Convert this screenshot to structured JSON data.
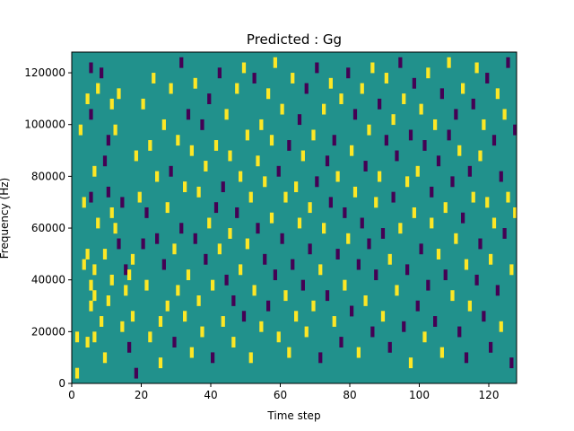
{
  "chart_data": {
    "type": "heatmap",
    "title": "Predicted : Gg",
    "xlabel": "Time step",
    "ylabel": "Frequency (Hz)",
    "xlim": [
      0,
      128
    ],
    "ylim": [
      0,
      128000
    ],
    "xticks": [
      0,
      20,
      40,
      60,
      80,
      100,
      120
    ],
    "yticks": [
      0,
      20000,
      40000,
      60000,
      80000,
      100000,
      120000
    ],
    "ytick_labels": [
      "0",
      "20000",
      "40000",
      "60000",
      "80000",
      "100000",
      "120000"
    ],
    "grid": false,
    "n_time_steps": 128,
    "n_frequency_bins": 64,
    "levels": [
      -1,
      0,
      1
    ],
    "colors": {
      "low": "#440154",
      "mid": "#21918c",
      "high": "#fde725"
    },
    "background_level": 0,
    "cells": [
      [
        1,
        2,
        1
      ],
      [
        1,
        9,
        1
      ],
      [
        2,
        49,
        1
      ],
      [
        3,
        35,
        1
      ],
      [
        3,
        23,
        1
      ],
      [
        4,
        55,
        1
      ],
      [
        4,
        25,
        1
      ],
      [
        4,
        8,
        1
      ],
      [
        5,
        61,
        -1
      ],
      [
        5,
        52,
        -1
      ],
      [
        5,
        36,
        -1
      ],
      [
        5,
        19,
        1
      ],
      [
        5,
        15,
        1
      ],
      [
        6,
        41,
        1
      ],
      [
        6,
        22,
        1
      ],
      [
        6,
        17,
        1
      ],
      [
        6,
        9,
        1
      ],
      [
        7,
        57,
        1
      ],
      [
        7,
        31,
        1
      ],
      [
        8,
        12,
        1
      ],
      [
        8,
        60,
        -1
      ],
      [
        9,
        43,
        -1
      ],
      [
        9,
        25,
        1
      ],
      [
        9,
        5,
        1
      ],
      [
        10,
        16,
        1
      ],
      [
        10,
        37,
        -1
      ],
      [
        10,
        47,
        -1
      ],
      [
        11,
        54,
        1
      ],
      [
        11,
        33,
        1
      ],
      [
        11,
        20,
        1
      ],
      [
        12,
        49,
        1
      ],
      [
        12,
        30,
        1
      ],
      [
        13,
        56,
        1
      ],
      [
        13,
        27,
        -1
      ],
      [
        14,
        11,
        1
      ],
      [
        14,
        35,
        -1
      ],
      [
        15,
        18,
        1
      ],
      [
        15,
        22,
        -1
      ],
      [
        16,
        21,
        1
      ],
      [
        16,
        7,
        -1
      ],
      [
        17,
        24,
        1
      ],
      [
        17,
        13,
        1
      ],
      [
        18,
        2,
        -1
      ],
      [
        18,
        44,
        1
      ],
      [
        19,
        36,
        1
      ],
      [
        20,
        54,
        1
      ],
      [
        20,
        27,
        -1
      ],
      [
        21,
        19,
        1
      ],
      [
        21,
        33,
        -1
      ],
      [
        22,
        46,
        1
      ],
      [
        22,
        9,
        1
      ],
      [
        23,
        59,
        1
      ],
      [
        24,
        40,
        1
      ],
      [
        24,
        28,
        -1
      ],
      [
        25,
        12,
        1
      ],
      [
        25,
        4,
        1
      ],
      [
        26,
        50,
        1
      ],
      [
        26,
        23,
        -1
      ],
      [
        27,
        34,
        1
      ],
      [
        27,
        15,
        1
      ],
      [
        28,
        57,
        1
      ],
      [
        28,
        41,
        -1
      ],
      [
        29,
        26,
        1
      ],
      [
        29,
        8,
        -1
      ],
      [
        30,
        47,
        1
      ],
      [
        30,
        18,
        1
      ],
      [
        31,
        62,
        -1
      ],
      [
        31,
        30,
        -1
      ],
      [
        32,
        13,
        1
      ],
      [
        32,
        38,
        1
      ],
      [
        33,
        52,
        -1
      ],
      [
        33,
        21,
        1
      ],
      [
        34,
        45,
        1
      ],
      [
        34,
        6,
        1
      ],
      [
        35,
        58,
        1
      ],
      [
        35,
        28,
        -1
      ],
      [
        36,
        16,
        1
      ],
      [
        36,
        37,
        1
      ],
      [
        37,
        50,
        -1
      ],
      [
        37,
        10,
        1
      ],
      [
        38,
        42,
        1
      ],
      [
        38,
        24,
        -1
      ],
      [
        39,
        55,
        -1
      ],
      [
        39,
        31,
        1
      ],
      [
        40,
        19,
        1
      ],
      [
        40,
        5,
        -1
      ],
      [
        41,
        46,
        1
      ],
      [
        41,
        34,
        -1
      ],
      [
        42,
        60,
        -1
      ],
      [
        42,
        26,
        1
      ],
      [
        43,
        12,
        1
      ],
      [
        43,
        38,
        -1
      ],
      [
        44,
        52,
        1
      ],
      [
        44,
        20,
        -1
      ],
      [
        45,
        44,
        1
      ],
      [
        45,
        29,
        1
      ],
      [
        46,
        16,
        -1
      ],
      [
        46,
        8,
        1
      ],
      [
        47,
        57,
        1
      ],
      [
        47,
        33,
        -1
      ],
      [
        48,
        40,
        1
      ],
      [
        48,
        22,
        1
      ],
      [
        49,
        61,
        1
      ],
      [
        49,
        13,
        -1
      ],
      [
        50,
        48,
        1
      ],
      [
        50,
        27,
        1
      ],
      [
        51,
        36,
        1
      ],
      [
        51,
        5,
        1
      ],
      [
        52,
        59,
        -1
      ],
      [
        52,
        18,
        1
      ],
      [
        53,
        43,
        1
      ],
      [
        53,
        30,
        -1
      ],
      [
        54,
        11,
        1
      ],
      [
        54,
        50,
        1
      ],
      [
        55,
        24,
        -1
      ],
      [
        55,
        39,
        1
      ],
      [
        56,
        56,
        1
      ],
      [
        56,
        15,
        -1
      ],
      [
        57,
        47,
        1
      ],
      [
        57,
        32,
        1
      ],
      [
        58,
        62,
        1
      ],
      [
        58,
        21,
        -1
      ],
      [
        59,
        41,
        -1
      ],
      [
        59,
        9,
        1
      ],
      [
        60,
        53,
        1
      ],
      [
        60,
        28,
        -1
      ],
      [
        61,
        17,
        1
      ],
      [
        61,
        36,
        1
      ],
      [
        62,
        46,
        -1
      ],
      [
        62,
        6,
        1
      ],
      [
        63,
        59,
        1
      ],
      [
        63,
        23,
        -1
      ],
      [
        64,
        38,
        1
      ],
      [
        64,
        13,
        1
      ],
      [
        65,
        51,
        -1
      ],
      [
        65,
        31,
        1
      ],
      [
        66,
        44,
        1
      ],
      [
        66,
        19,
        -1
      ],
      [
        67,
        57,
        -1
      ],
      [
        67,
        10,
        1
      ],
      [
        68,
        34,
        1
      ],
      [
        68,
        26,
        -1
      ],
      [
        69,
        48,
        1
      ],
      [
        69,
        15,
        1
      ],
      [
        70,
        61,
        -1
      ],
      [
        70,
        39,
        -1
      ],
      [
        71,
        22,
        1
      ],
      [
        71,
        5,
        -1
      ],
      [
        72,
        53,
        1
      ],
      [
        72,
        30,
        1
      ],
      [
        73,
        43,
        -1
      ],
      [
        73,
        17,
        -1
      ],
      [
        74,
        58,
        1
      ],
      [
        74,
        35,
        -1
      ],
      [
        75,
        12,
        1
      ],
      [
        75,
        47,
        -1
      ],
      [
        76,
        25,
        -1
      ],
      [
        76,
        40,
        1
      ],
      [
        77,
        55,
        1
      ],
      [
        77,
        8,
        -1
      ],
      [
        78,
        33,
        -1
      ],
      [
        78,
        19,
        1
      ],
      [
        79,
        60,
        -1
      ],
      [
        79,
        28,
        1
      ],
      [
        80,
        45,
        1
      ],
      [
        80,
        14,
        -1
      ],
      [
        81,
        52,
        -1
      ],
      [
        81,
        37,
        1
      ],
      [
        82,
        23,
        -1
      ],
      [
        82,
        6,
        1
      ],
      [
        83,
        57,
        1
      ],
      [
        83,
        31,
        -1
      ],
      [
        84,
        42,
        -1
      ],
      [
        84,
        16,
        1
      ],
      [
        85,
        49,
        1
      ],
      [
        85,
        27,
        -1
      ],
      [
        86,
        61,
        1
      ],
      [
        86,
        10,
        -1
      ],
      [
        87,
        35,
        1
      ],
      [
        87,
        21,
        -1
      ],
      [
        88,
        54,
        -1
      ],
      [
        88,
        40,
        1
      ],
      [
        89,
        13,
        1
      ],
      [
        89,
        29,
        -1
      ],
      [
        90,
        47,
        -1
      ],
      [
        90,
        59,
        1
      ],
      [
        91,
        24,
        1
      ],
      [
        91,
        7,
        -1
      ],
      [
        92,
        51,
        1
      ],
      [
        92,
        36,
        -1
      ],
      [
        93,
        18,
        1
      ],
      [
        93,
        44,
        -1
      ],
      [
        94,
        62,
        -1
      ],
      [
        94,
        30,
        1
      ],
      [
        95,
        11,
        -1
      ],
      [
        95,
        55,
        1
      ],
      [
        96,
        39,
        1
      ],
      [
        96,
        22,
        -1
      ],
      [
        97,
        48,
        -1
      ],
      [
        97,
        4,
        1
      ],
      [
        98,
        33,
        1
      ],
      [
        98,
        58,
        -1
      ],
      [
        99,
        15,
        -1
      ],
      [
        99,
        41,
        1
      ],
      [
        100,
        53,
        1
      ],
      [
        100,
        26,
        -1
      ],
      [
        101,
        9,
        1
      ],
      [
        101,
        46,
        -1
      ],
      [
        102,
        60,
        1
      ],
      [
        102,
        19,
        -1
      ],
      [
        103,
        37,
        -1
      ],
      [
        103,
        31,
        1
      ],
      [
        104,
        50,
        1
      ],
      [
        104,
        12,
        -1
      ],
      [
        105,
        43,
        -1
      ],
      [
        105,
        25,
        1
      ],
      [
        106,
        56,
        -1
      ],
      [
        106,
        6,
        1
      ],
      [
        107,
        34,
        1
      ],
      [
        107,
        21,
        -1
      ],
      [
        108,
        48,
        -1
      ],
      [
        108,
        62,
        1
      ],
      [
        109,
        17,
        1
      ],
      [
        109,
        39,
        -1
      ],
      [
        110,
        52,
        -1
      ],
      [
        110,
        28,
        1
      ],
      [
        111,
        10,
        -1
      ],
      [
        111,
        45,
        1
      ],
      [
        112,
        57,
        1
      ],
      [
        112,
        32,
        -1
      ],
      [
        113,
        23,
        1
      ],
      [
        113,
        5,
        -1
      ],
      [
        114,
        41,
        -1
      ],
      [
        114,
        15,
        1
      ],
      [
        115,
        54,
        -1
      ],
      [
        115,
        36,
        1
      ],
      [
        116,
        20,
        -1
      ],
      [
        116,
        61,
        1
      ],
      [
        117,
        44,
        1
      ],
      [
        117,
        27,
        -1
      ],
      [
        118,
        13,
        -1
      ],
      [
        118,
        50,
        1
      ],
      [
        119,
        35,
        1
      ],
      [
        119,
        59,
        -1
      ],
      [
        120,
        24,
        1
      ],
      [
        120,
        7,
        -1
      ],
      [
        121,
        47,
        -1
      ],
      [
        121,
        31,
        1
      ],
      [
        122,
        56,
        1
      ],
      [
        122,
        18,
        -1
      ],
      [
        123,
        40,
        -1
      ],
      [
        123,
        11,
        1
      ],
      [
        124,
        52,
        1
      ],
      [
        124,
        29,
        -1
      ],
      [
        125,
        62,
        -1
      ],
      [
        125,
        36,
        1
      ],
      [
        126,
        22,
        1
      ],
      [
        126,
        4,
        -1
      ],
      [
        127,
        49,
        -1
      ],
      [
        127,
        33,
        1
      ]
    ],
    "bands": [
      {
        "x": [
          2,
          128
        ],
        "y_bin": [
          0,
          64
        ],
        "note": ""
      }
    ]
  }
}
